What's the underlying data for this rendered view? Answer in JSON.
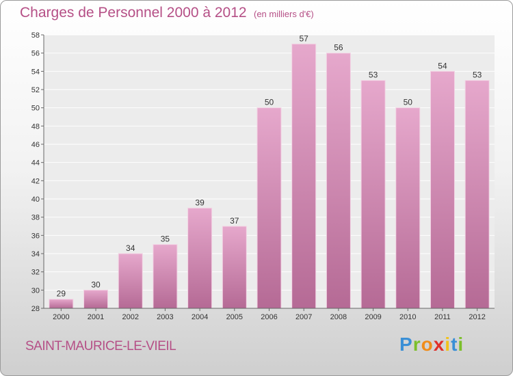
{
  "header": {
    "title": "Charges de Personnel 2000 à 2012",
    "subtitle": "(en milliers d'€)"
  },
  "footer": {
    "city": "SAINT-MAURICE-LE-VIEIL",
    "logo_letters": [
      "P",
      "r",
      "o",
      "x",
      "i",
      "t",
      "i"
    ],
    "logo_colors": [
      "#3a8fd6",
      "#7bbf2a",
      "#f08c1a",
      "#e0302a",
      "#f2c21a",
      "#3a8fd6",
      "#7bbf2a"
    ]
  },
  "colors": {
    "bar": "#cf80ac",
    "text_accent": "#b54f86"
  },
  "chart_data": {
    "type": "bar",
    "categories": [
      "2000",
      "2001",
      "2002",
      "2003",
      "2004",
      "2005",
      "2006",
      "2007",
      "2008",
      "2009",
      "2010",
      "2011",
      "2012"
    ],
    "values": [
      29,
      30,
      34,
      35,
      39,
      37,
      50,
      57,
      56,
      53,
      50,
      54,
      53
    ],
    "title": "Charges de Personnel 2000 à 2012",
    "subtitle": "(en milliers d'€)",
    "xlabel": "",
    "ylabel": "",
    "ylim": [
      28,
      58
    ],
    "yticks": [
      28,
      30,
      32,
      34,
      36,
      38,
      40,
      42,
      44,
      46,
      48,
      50,
      52,
      54,
      56,
      58
    ],
    "grid": true,
    "legend": "none"
  }
}
